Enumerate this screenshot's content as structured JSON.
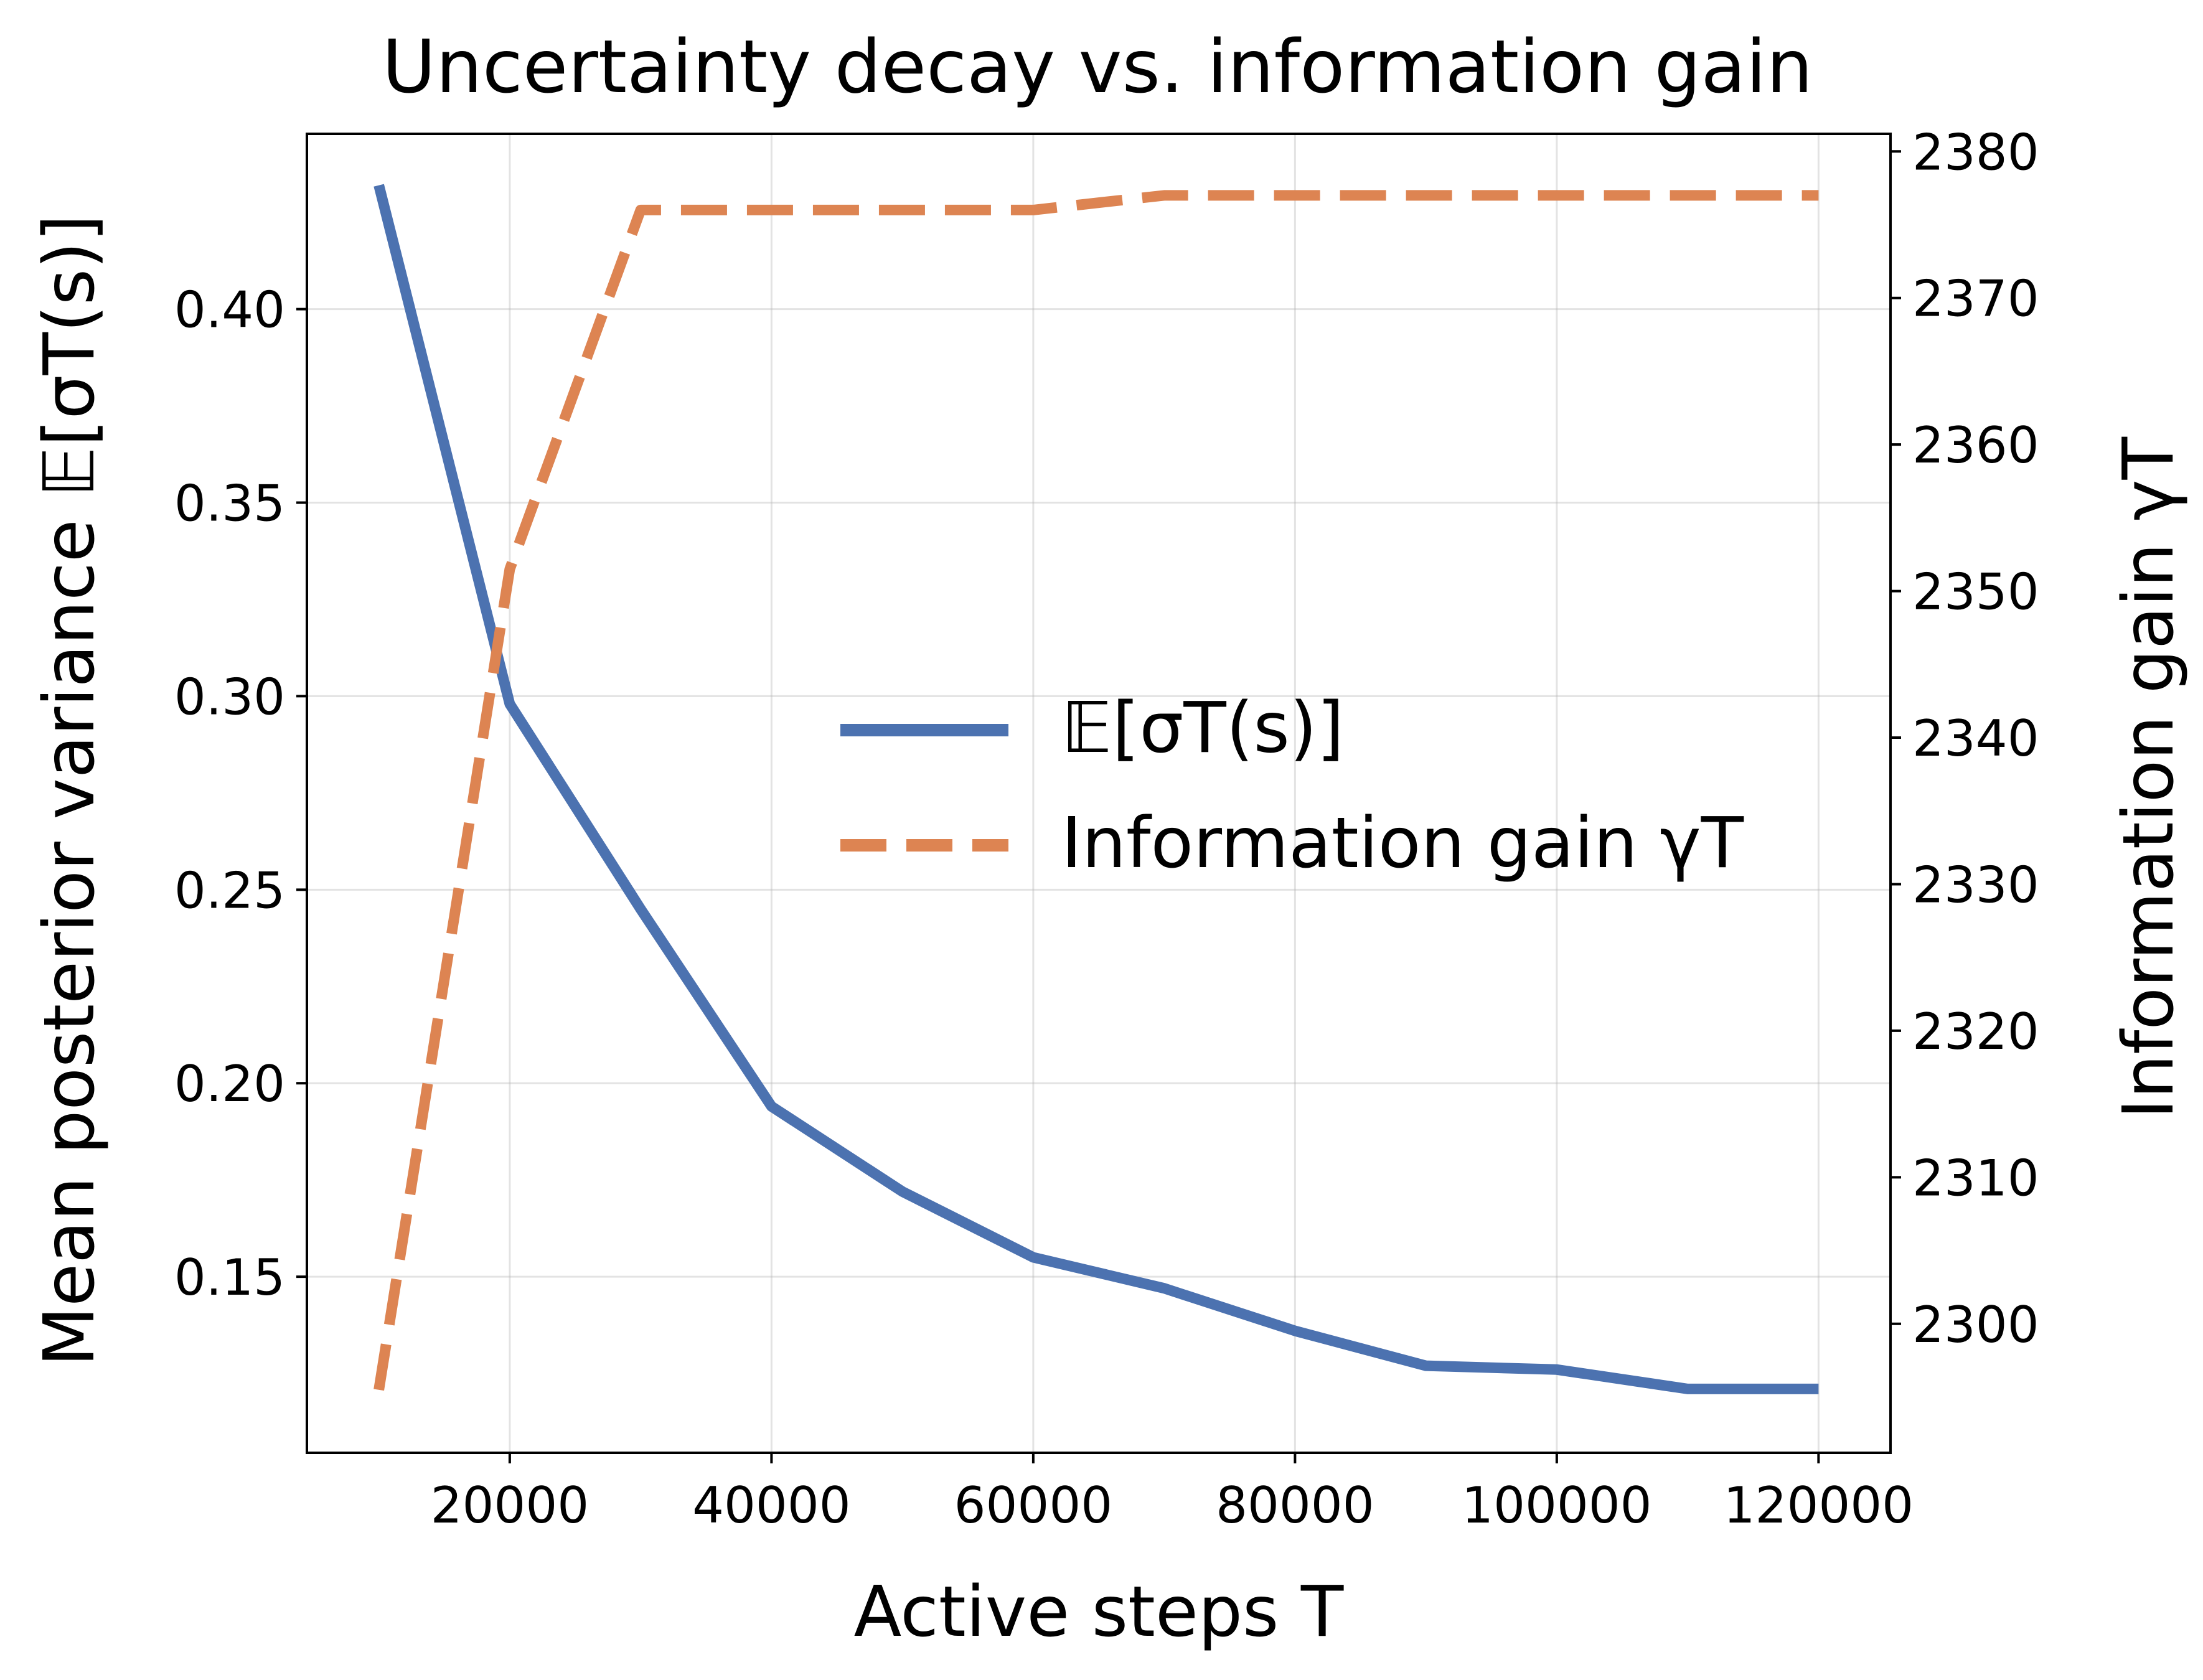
{
  "chart_data": {
    "type": "line",
    "title": "Uncertainty decay vs. information gain",
    "xlabel": "Active steps T",
    "ylabel": "Mean posterior variance 𝔼[σT(s)]",
    "ylabel_right": "Information gain γT",
    "x": [
      10000,
      20000,
      30000,
      40000,
      50000,
      60000,
      70000,
      80000,
      90000,
      100000,
      110000,
      120000
    ],
    "xlim": [
      4500,
      125500
    ],
    "ylim": [
      0.1045,
      0.4453
    ],
    "ylim_right": [
      2291.2,
      2381.2
    ],
    "x_ticks": [
      20000,
      40000,
      60000,
      80000,
      100000,
      120000
    ],
    "x_tick_labels": [
      "20000",
      "40000",
      "60000",
      "80000",
      "100000",
      "120000"
    ],
    "y_ticks": [
      0.15,
      0.2,
      0.25,
      0.3,
      0.35,
      0.4
    ],
    "y_tick_labels": [
      "0.15",
      "0.20",
      "0.25",
      "0.30",
      "0.35",
      "0.40"
    ],
    "y_right_ticks": [
      2300,
      2310,
      2320,
      2330,
      2340,
      2350,
      2360,
      2370,
      2380
    ],
    "y_right_tick_labels": [
      "2300",
      "2310",
      "2320",
      "2330",
      "2340",
      "2350",
      "2360",
      "2370",
      "2380"
    ],
    "grid": true,
    "legend_position": "center-right",
    "series": [
      {
        "name": "𝔼[σT(s)]",
        "axis": "left",
        "color": "#4c72b0",
        "style": "solid",
        "values": [
          0.432,
          0.298,
          0.245,
          0.194,
          0.172,
          0.155,
          0.147,
          0.136,
          0.127,
          0.126,
          0.121,
          0.121
        ]
      },
      {
        "name": "Information gain γT",
        "axis": "right",
        "color": "#dd8452",
        "style": "dashed",
        "values": [
          2295.5,
          2351.5,
          2376,
          2376,
          2376,
          2376,
          2377,
          2377,
          2377,
          2377,
          2377,
          2377
        ]
      }
    ]
  }
}
